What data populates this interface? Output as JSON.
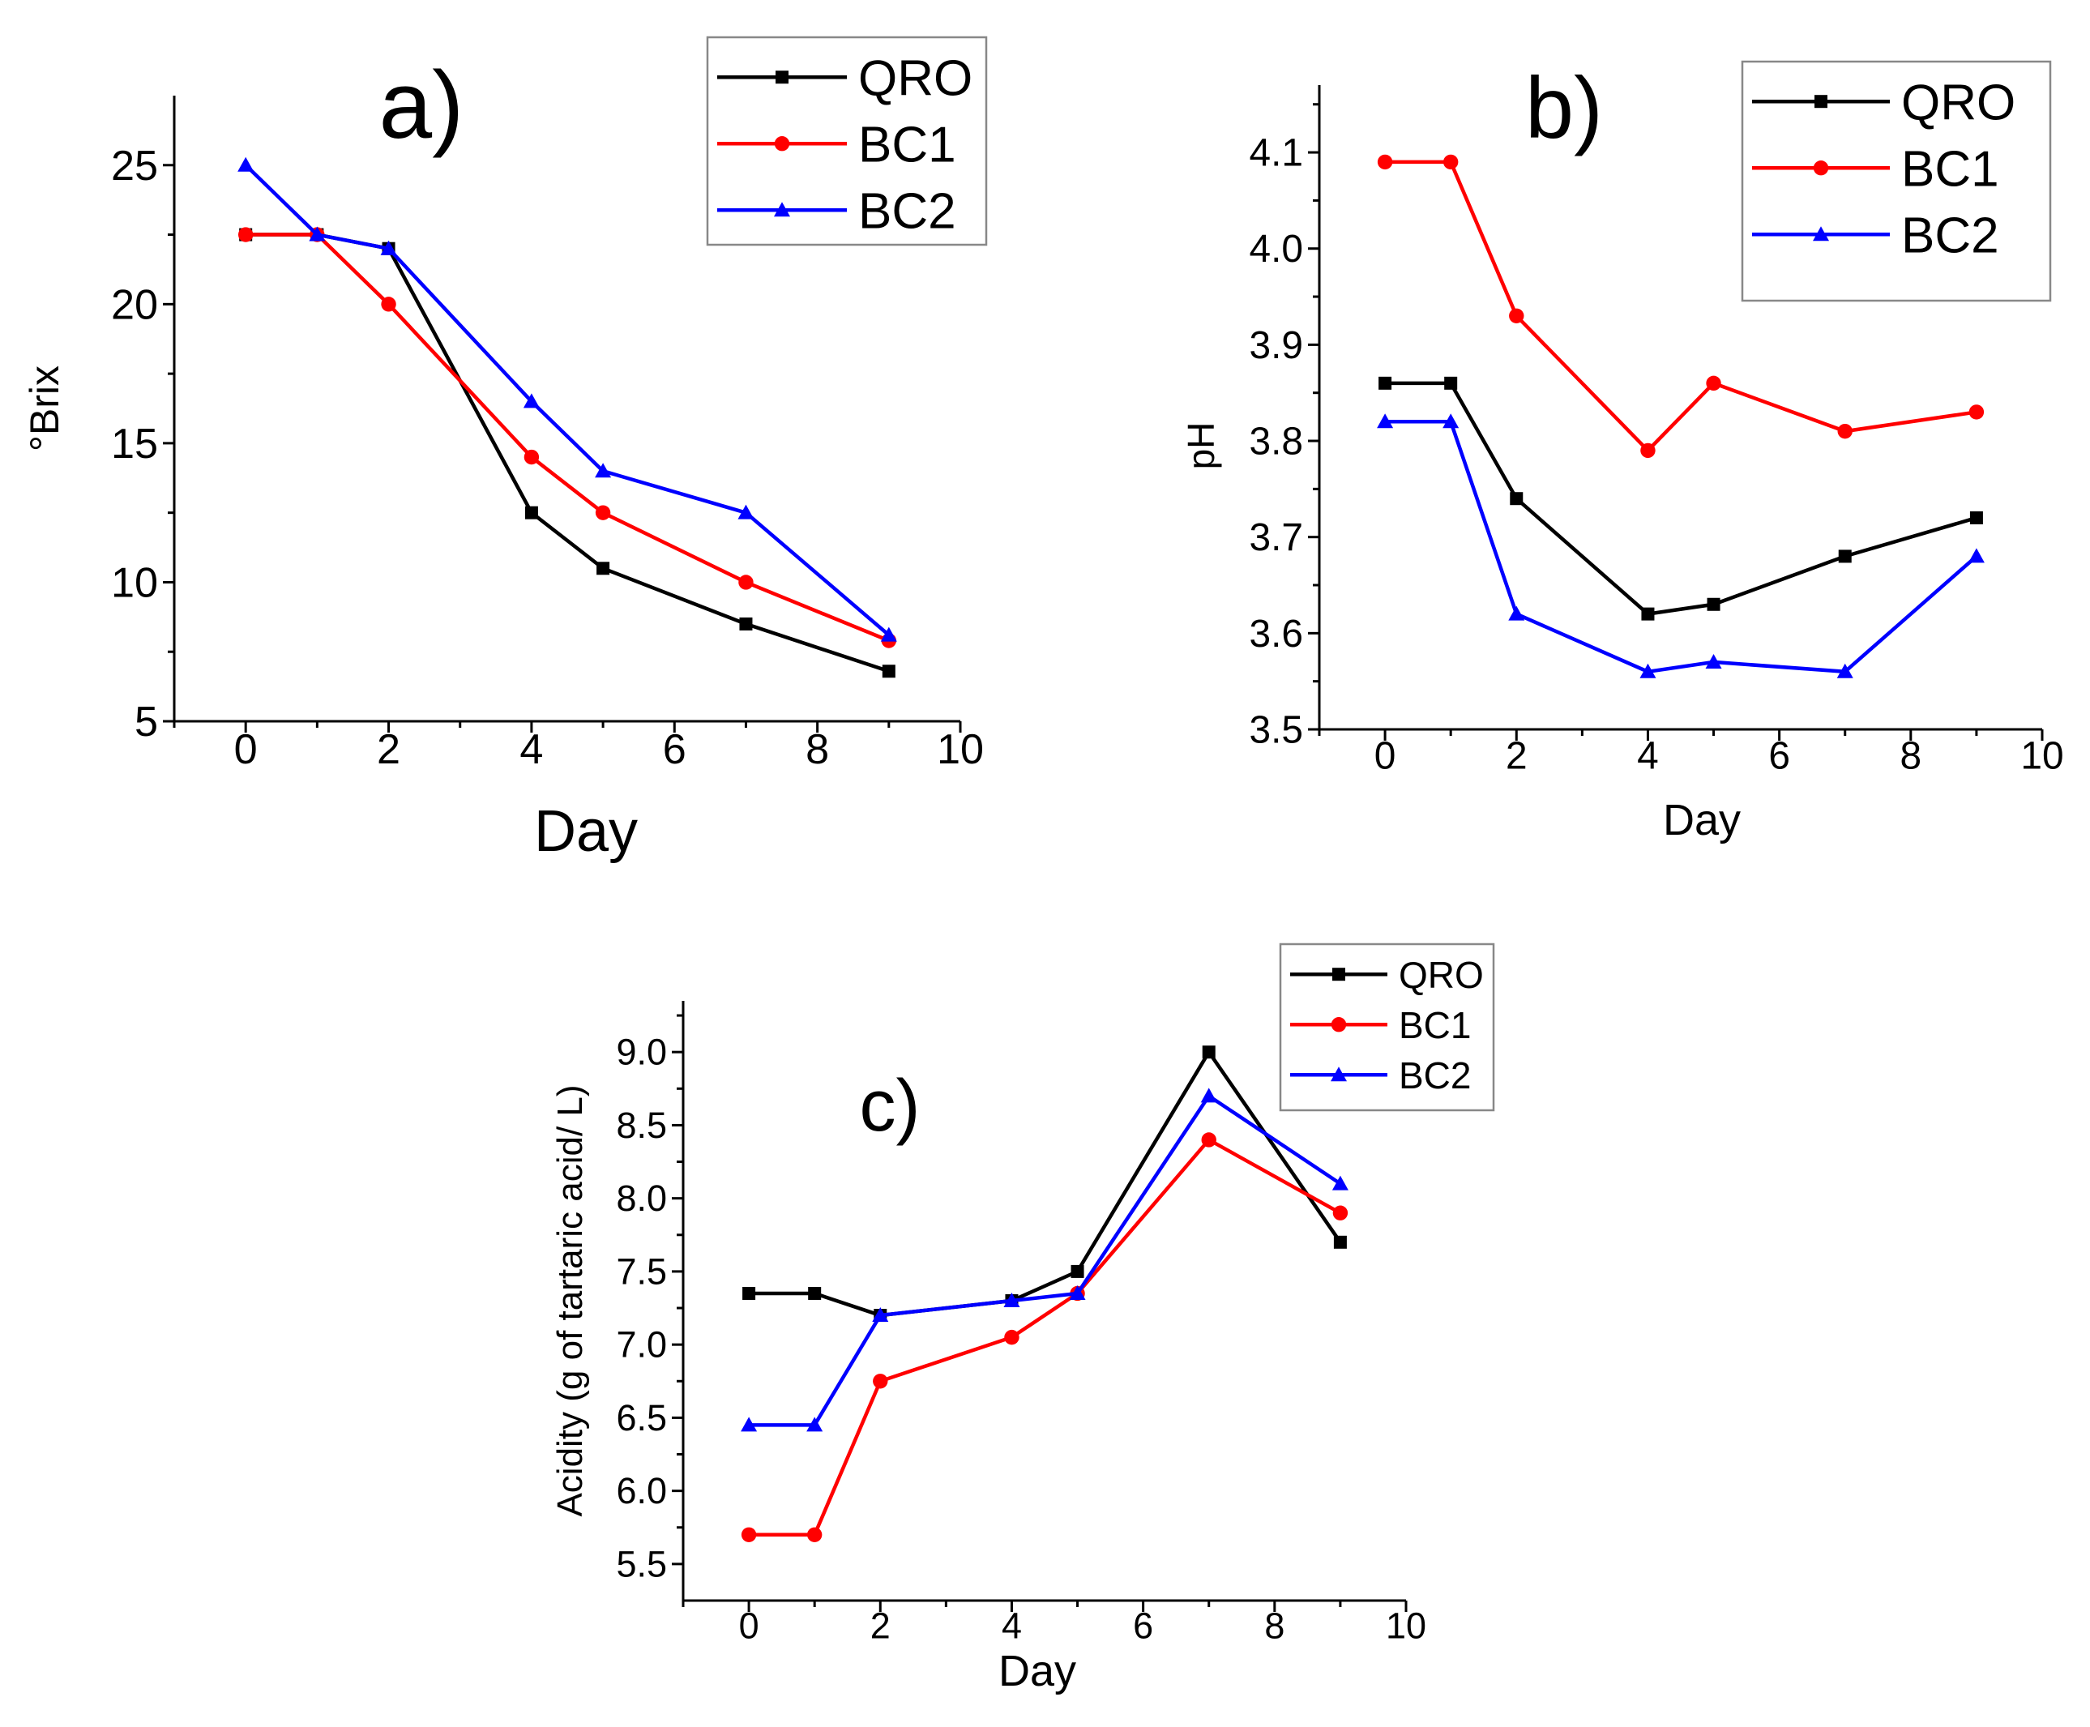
{
  "figure": {
    "panels": [
      "a)",
      "b)",
      "c)"
    ]
  },
  "colors": {
    "QRO": "#000000",
    "BC1": "#ff0000",
    "BC2": "#0000ff",
    "axis": "#000000"
  },
  "chart_data": [
    {
      "type": "line",
      "panel_label": "a)",
      "title": "",
      "xlabel": "Day",
      "ylabel": "°Brix",
      "xlim": [
        -1,
        10
      ],
      "ylim": [
        5,
        27.5
      ],
      "xticks": [
        0,
        2,
        4,
        6,
        8,
        10
      ],
      "xtick_labels": [
        "0",
        "2",
        "4",
        "6",
        "8",
        "10"
      ],
      "yticks": [
        5,
        10,
        15,
        20,
        25
      ],
      "ytick_labels": [
        "5",
        "10",
        "15",
        "20",
        "25"
      ],
      "grid": false,
      "legend_position": "top-right",
      "series": [
        {
          "name": "QRO",
          "marker": "square",
          "x": [
            0,
            1,
            2,
            4,
            5,
            7,
            9
          ],
          "values": [
            22.5,
            22.5,
            22.0,
            12.5,
            10.5,
            8.5,
            6.8
          ]
        },
        {
          "name": "BC1",
          "marker": "circle",
          "x": [
            0,
            1,
            2,
            4,
            5,
            7,
            9
          ],
          "values": [
            22.5,
            22.5,
            20.0,
            14.5,
            12.5,
            10.0,
            7.9
          ]
        },
        {
          "name": "BC2",
          "marker": "triangle",
          "x": [
            0,
            1,
            2,
            4,
            5,
            7,
            9
          ],
          "values": [
            25.0,
            22.5,
            22.0,
            16.5,
            14.0,
            12.5,
            8.1
          ]
        }
      ]
    },
    {
      "type": "line",
      "panel_label": "b)",
      "title": "",
      "xlabel": "Day",
      "ylabel": "pH",
      "xlim": [
        -1,
        10
      ],
      "ylim": [
        3.5,
        4.17
      ],
      "xticks": [
        0,
        2,
        4,
        6,
        8,
        10
      ],
      "xtick_labels": [
        "0",
        "2",
        "4",
        "6",
        "8",
        "10"
      ],
      "yticks": [
        3.5,
        3.6,
        3.7,
        3.8,
        3.9,
        4.0,
        4.1
      ],
      "ytick_labels": [
        "3.5",
        "3.6",
        "3.7",
        "3.8",
        "3.9",
        "4.0",
        "4.1"
      ],
      "grid": false,
      "legend_position": "top-right",
      "series": [
        {
          "name": "QRO",
          "marker": "square",
          "x": [
            0,
            1,
            2,
            4,
            5,
            7,
            9
          ],
          "values": [
            3.86,
            3.86,
            3.74,
            3.62,
            3.63,
            3.68,
            3.72
          ]
        },
        {
          "name": "BC1",
          "marker": "circle",
          "x": [
            0,
            1,
            2,
            4,
            5,
            7,
            9
          ],
          "values": [
            4.09,
            4.09,
            3.93,
            3.79,
            3.86,
            3.81,
            3.83
          ]
        },
        {
          "name": "BC2",
          "marker": "triangle",
          "x": [
            0,
            1,
            2,
            4,
            5,
            7,
            9
          ],
          "values": [
            3.82,
            3.82,
            3.62,
            3.56,
            3.57,
            3.56,
            3.68
          ]
        }
      ]
    },
    {
      "type": "line",
      "panel_label": "c)",
      "title": "",
      "xlabel": "Day",
      "ylabel": "Acidity (g of tartaric acid/ L)",
      "xlim": [
        -1,
        10
      ],
      "ylim": [
        5.25,
        9.35
      ],
      "xticks": [
        0,
        2,
        4,
        6,
        8,
        10
      ],
      "xtick_labels": [
        "0",
        "2",
        "4",
        "6",
        "8",
        "10"
      ],
      "yticks": [
        5.5,
        6.0,
        6.5,
        7.0,
        7.5,
        8.0,
        8.5,
        9.0
      ],
      "ytick_labels": [
        "5.5",
        "6.0",
        "6.5",
        "7.0",
        "7.5",
        "8.0",
        "8.5",
        "9.0"
      ],
      "grid": false,
      "legend_position": "top-right",
      "series": [
        {
          "name": "QRO",
          "marker": "square",
          "x": [
            0,
            1,
            2,
            4,
            5,
            7,
            9
          ],
          "values": [
            7.35,
            7.35,
            7.2,
            7.3,
            7.5,
            9.0,
            7.7
          ]
        },
        {
          "name": "BC1",
          "marker": "circle",
          "x": [
            0,
            1,
            2,
            4,
            5,
            7,
            9
          ],
          "values": [
            5.7,
            5.7,
            6.75,
            7.05,
            7.35,
            8.4,
            7.9
          ]
        },
        {
          "name": "BC2",
          "marker": "triangle",
          "x": [
            0,
            1,
            2,
            4,
            5,
            7,
            9
          ],
          "values": [
            6.45,
            6.45,
            7.2,
            7.3,
            7.35,
            8.7,
            8.1
          ]
        }
      ]
    }
  ]
}
